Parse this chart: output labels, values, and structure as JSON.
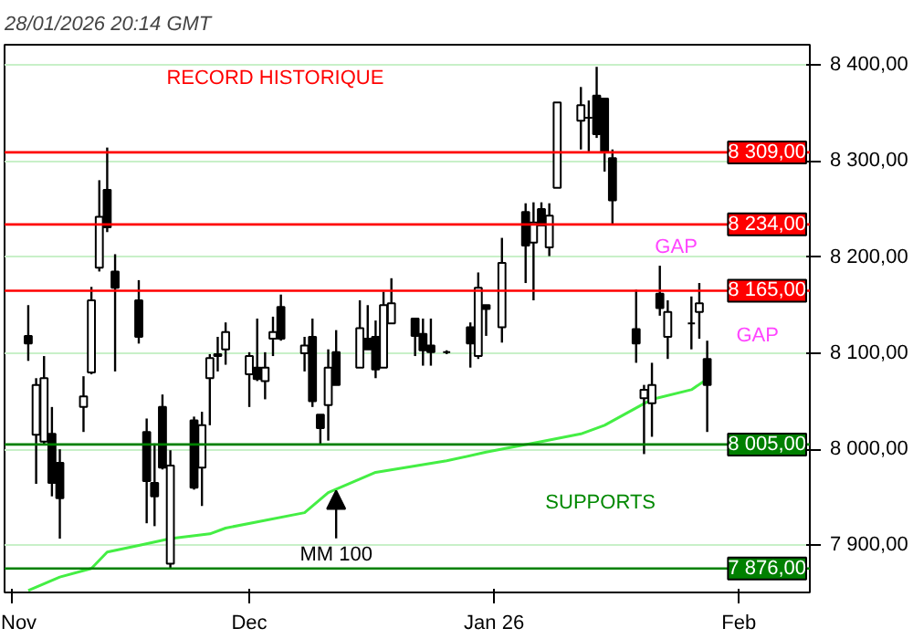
{
  "chart_data": {
    "type": "candlestick",
    "title": "28/01/2026 20:14 GMT",
    "x": [
      "2025-11-03",
      "2025-11-04",
      "2025-11-05",
      "2025-11-06",
      "2025-11-07",
      "2025-11-10",
      "2025-11-11",
      "2025-11-12",
      "2025-11-13",
      "2025-11-14",
      "2025-11-17",
      "2025-11-18",
      "2025-11-19",
      "2025-11-20",
      "2025-11-21",
      "2025-11-24",
      "2025-11-25",
      "2025-11-26",
      "2025-11-27",
      "2025-11-28",
      "2025-12-01",
      "2025-12-02",
      "2025-12-03",
      "2025-12-04",
      "2025-12-05",
      "2025-12-08",
      "2025-12-09",
      "2025-12-10",
      "2025-12-11",
      "2025-12-12",
      "2025-12-15",
      "2025-12-16",
      "2025-12-17",
      "2025-12-18",
      "2025-12-19",
      "2025-12-22",
      "2025-12-23",
      "2025-12-24",
      "2025-12-26",
      "2025-12-29",
      "2025-12-30",
      "2025-12-31",
      "2026-01-02",
      "2026-01-05",
      "2026-01-06",
      "2026-01-07",
      "2026-01-08",
      "2026-01-09",
      "2026-01-12",
      "2026-01-13",
      "2026-01-14",
      "2026-01-15",
      "2026-01-16",
      "2026-01-19",
      "2026-01-20",
      "2026-01-21",
      "2026-01-22",
      "2026-01-23",
      "2026-01-26",
      "2026-01-27",
      "2026-01-28"
    ],
    "ohlc": [
      [
        8118,
        8150,
        8092,
        8110
      ],
      [
        8015,
        8074,
        7964,
        8067
      ],
      [
        8008,
        8097,
        8004,
        8074
      ],
      [
        8016,
        8044,
        7951,
        7965
      ],
      [
        7986,
        8000,
        7907,
        7949
      ],
      [
        8044,
        8076,
        8018,
        8055
      ],
      [
        8080,
        8169,
        8078,
        8155
      ],
      [
        8189,
        8280,
        8185,
        8242
      ],
      [
        8270,
        8314,
        8226,
        8231
      ],
      [
        8185,
        8203,
        8081,
        8168
      ],
      [
        8155,
        8176,
        8110,
        8117
      ],
      [
        8018,
        8032,
        7923,
        7967
      ],
      [
        7965,
        8006,
        7920,
        7951
      ],
      [
        8044,
        8057,
        7979,
        7981
      ],
      [
        7881,
        7999,
        7876,
        7983
      ],
      [
        8030,
        8034,
        7958,
        7960
      ],
      [
        7981,
        8039,
        7941,
        8025
      ],
      [
        8074,
        8099,
        8025,
        8095
      ],
      [
        8097,
        8117,
        8081,
        8099
      ],
      [
        8104,
        8132,
        8088,
        8122
      ],
      [
        8078,
        8101,
        8044,
        8097
      ],
      [
        8085,
        8136,
        8071,
        8073
      ],
      [
        8071,
        8101,
        8052,
        8085
      ],
      [
        8115,
        8138,
        8097,
        8122
      ],
      [
        8148,
        8161,
        8113,
        8115
      ],
      [
        8100,
        8117,
        8081,
        8108
      ],
      [
        8117,
        8136,
        8044,
        8050
      ],
      [
        8036,
        8036,
        8005,
        8022
      ],
      [
        8046,
        8104,
        8009,
        8085
      ],
      [
        8101,
        8124,
        8067,
        8067
      ],
      [
        8085,
        8155,
        8085,
        8126
      ],
      [
        8115,
        8150,
        8104,
        8104
      ],
      [
        8117,
        8134,
        8074,
        8083
      ],
      [
        8085,
        8164,
        8085,
        8150
      ],
      [
        8131,
        8178,
        8131,
        8152
      ],
      [
        8136,
        8136,
        8097,
        8118
      ],
      [
        8120,
        8136,
        8087,
        8103
      ],
      [
        8108,
        8136,
        8087,
        8101
      ],
      [
        8101,
        8103,
        8099,
        8101
      ],
      [
        8127,
        8132,
        8085,
        8110
      ],
      [
        8097,
        8184,
        8094,
        8168
      ],
      [
        8150,
        8150,
        8118,
        8146
      ],
      [
        8127,
        8220,
        8111,
        8194
      ],
      [
        8247,
        8256,
        8173,
        8212
      ],
      [
        8215,
        8257,
        8155,
        8236
      ],
      [
        8250,
        8257,
        8233,
        8233
      ],
      [
        8210,
        8256,
        8201,
        8243
      ],
      [
        8272,
        8361,
        8272,
        8361
      ],
      [
        8342,
        8377,
        8312,
        8358
      ],
      [
        8345,
        8363,
        8310,
        8345
      ],
      [
        8368,
        8398,
        8324,
        8328
      ],
      [
        8365,
        8365,
        8289,
        8310
      ],
      [
        8303,
        8312,
        8233,
        8259
      ],
      [
        8125,
        8166,
        8090,
        8110
      ],
      [
        8053,
        8067,
        7995,
        8062
      ],
      [
        8048,
        8090,
        8013,
        8067
      ],
      [
        8162,
        8191,
        8139,
        8147
      ],
      [
        8117,
        8155,
        8094,
        8143
      ],
      [
        8131,
        8159,
        8104,
        8131
      ],
      [
        8143,
        8173,
        8115,
        8152
      ],
      [
        8094,
        8113,
        8018,
        8067
      ]
    ],
    "series": [
      {
        "type": "line",
        "color": "#44ee44",
        "x": [
          "2025-11-03",
          "2025-11-07",
          "2025-11-11",
          "2025-11-13",
          "2025-11-17",
          "2025-11-21",
          "2025-11-26",
          "2025-11-28",
          "2025-12-08",
          "2025-12-11",
          "2025-12-17",
          "2025-12-26",
          "2025-12-31",
          "2026-01-07",
          "2026-01-12",
          "2026-01-15",
          "2026-01-21",
          "2026-01-26",
          "2026-01-28"
        ],
        "values": [
          7853,
          7867,
          7876,
          7893,
          7900,
          7907,
          7912,
          7918,
          7934,
          7955,
          7976,
          7988,
          7997,
          8008,
          8016,
          8025,
          8052,
          8062,
          8073
        ]
      }
    ],
    "xlim": [
      "2025-10-31",
      "2026-02-10"
    ],
    "xticks": [
      {
        "value": "2025-11-01",
        "label": "Nov"
      },
      {
        "value": "2025-12-01",
        "label": "Dec"
      },
      {
        "value": "2026-01-01",
        "label": "Jan 26"
      },
      {
        "value": "2026-02-01",
        "label": "Feb"
      }
    ],
    "ylim": [
      7851,
      8421
    ],
    "yticks": [
      {
        "value": 7900,
        "label": "7 900,00"
      },
      {
        "value": 8000,
        "label": "8 000,00"
      },
      {
        "value": 8100,
        "label": "8 100,00"
      },
      {
        "value": 8200,
        "label": "8 200,00"
      },
      {
        "value": 8300,
        "label": "8 300,00"
      },
      {
        "value": 8400,
        "label": "8 400,00"
      }
    ],
    "grid": "y",
    "ref_lines": [
      {
        "axis": "y",
        "value": 8309,
        "label": "8 309,00",
        "color": "#ff0000"
      },
      {
        "axis": "y",
        "value": 8234,
        "label": "8 234,00",
        "color": "#ff0000"
      },
      {
        "axis": "y",
        "value": 8165,
        "label": "8 165,00",
        "color": "#ff0000"
      },
      {
        "axis": "y",
        "value": 8005,
        "label": "8 005,00",
        "color": "#008000"
      },
      {
        "axis": "y",
        "value": 7876,
        "label": "7 876,00",
        "color": "#008000"
      }
    ],
    "annotations": [
      "RECORD HISTORIQUE",
      "GAP",
      "GAP",
      "SUPPORTS",
      {
        "text": "MM 100",
        "x": "2025-12-12",
        "y": 7957
      }
    ]
  }
}
